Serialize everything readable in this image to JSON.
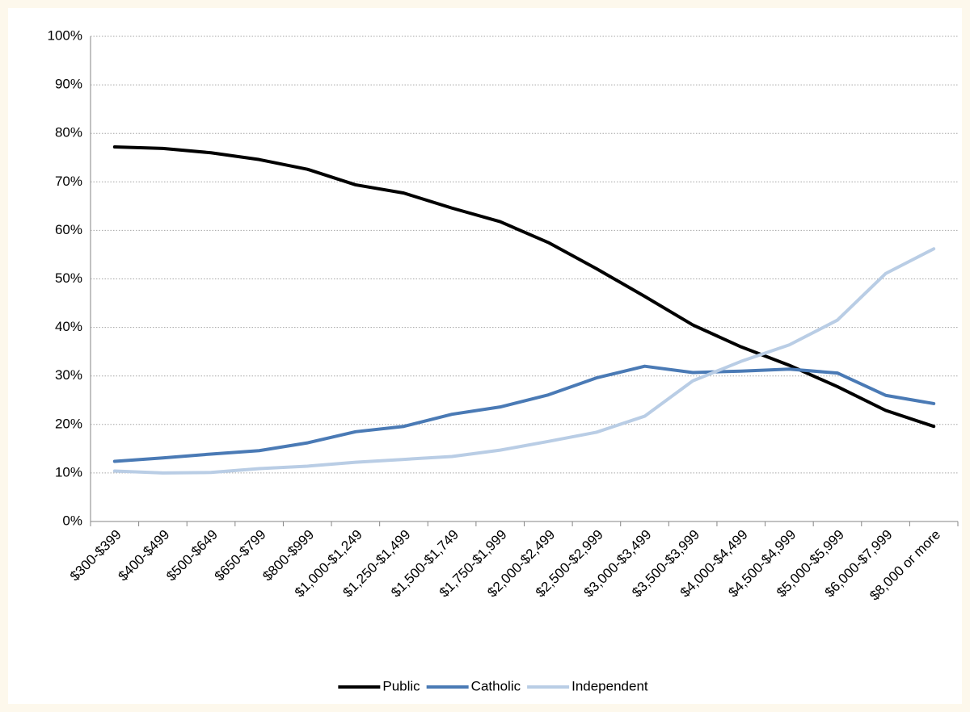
{
  "chart_data": {
    "type": "line",
    "categories": [
      "$300-$399",
      "$400-$499",
      "$500-$649",
      "$650-$799",
      "$800-$999",
      "$1,000-$1,249",
      "$1,250-$1,499",
      "$1,500-$1,749",
      "$1,750-$1,999",
      "$2,000-$2,499",
      "$2,500-$2,999",
      "$3,000-$3,499",
      "$3,500-$3,999",
      "$4,000-$4,499",
      "$4,500-$4,999",
      "$5,000-$5,999",
      "$6,000-$7,999",
      "$8,000 or more"
    ],
    "series": [
      {
        "name": "Public",
        "color": "#000000",
        "values": [
          77.2,
          76.9,
          76.0,
          74.6,
          72.6,
          69.4,
          67.7,
          64.6,
          61.8,
          57.5,
          52.1,
          46.4,
          40.5,
          36.0,
          32.2,
          27.8,
          22.9,
          19.6
        ]
      },
      {
        "name": "Catholic",
        "color": "#4a7ab5",
        "values": [
          12.4,
          13.1,
          13.9,
          14.6,
          16.2,
          18.5,
          19.6,
          22.1,
          23.6,
          26.1,
          29.6,
          32.0,
          30.7,
          31.0,
          31.4,
          30.6,
          26.0,
          24.3
        ]
      },
      {
        "name": "Independent",
        "color": "#b9cde5",
        "values": [
          10.4,
          10.0,
          10.1,
          10.9,
          11.4,
          12.2,
          12.8,
          13.4,
          14.7,
          16.5,
          18.4,
          21.7,
          29.0,
          33.0,
          36.4,
          41.5,
          51.1,
          56.2
        ]
      }
    ],
    "ylim": [
      0,
      100
    ],
    "yticks": [
      {
        "value": 0,
        "label": "0%"
      },
      {
        "value": 10,
        "label": "10%"
      },
      {
        "value": 20,
        "label": "20%"
      },
      {
        "value": 30,
        "label": "30%"
      },
      {
        "value": 40,
        "label": "40%"
      },
      {
        "value": 50,
        "label": "50%"
      },
      {
        "value": 60,
        "label": "60%"
      },
      {
        "value": 70,
        "label": "70%"
      },
      {
        "value": 80,
        "label": "80%"
      },
      {
        "value": 90,
        "label": "90%"
      },
      {
        "value": 100,
        "label": "100%"
      }
    ],
    "grid": true,
    "legend": "bottom"
  }
}
